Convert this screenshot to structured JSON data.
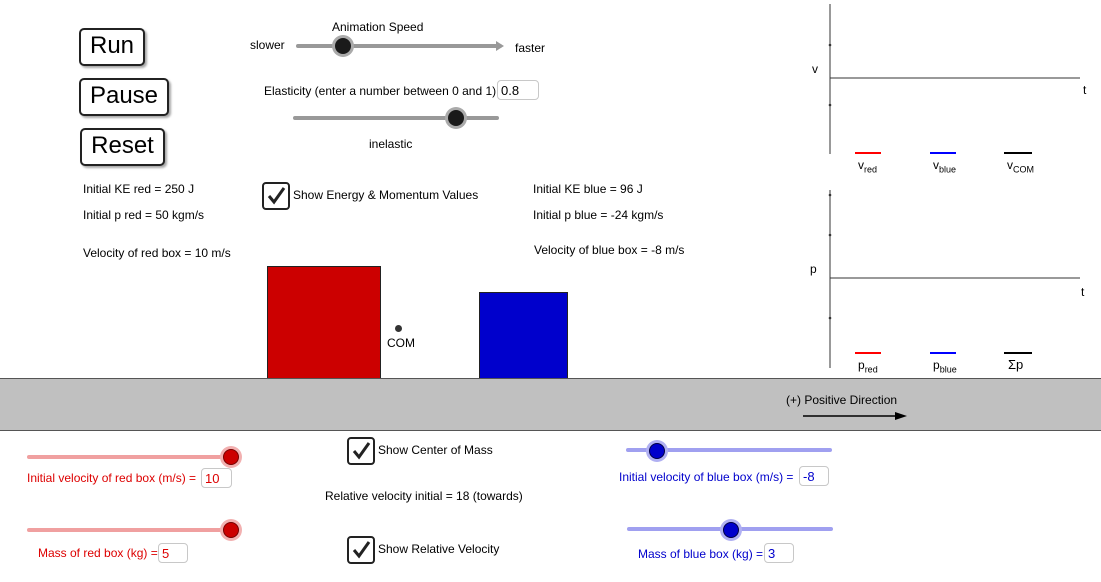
{
  "controls": {
    "run_label": "Run",
    "pause_label": "Pause",
    "reset_label": "Reset"
  },
  "animation": {
    "title": "Animation Speed",
    "slower_label": "slower",
    "faster_label": "faster",
    "speed_fraction": 0.25
  },
  "elasticity": {
    "label": "Elasticity (enter a number between 0 and 1)",
    "value": "0.8",
    "slider_fraction": 0.8,
    "state_label": "inelastic"
  },
  "show_energy": {
    "label": "Show Energy & Momentum Values",
    "checked": true
  },
  "red_info": {
    "ke": "Initial KE red = 250 J",
    "p": "Initial p red = 50 kgm/s",
    "velocity": "Velocity of red box = 10 m/s"
  },
  "blue_info": {
    "ke": "Initial KE blue = 96 J",
    "p": "Initial p blue = -24 kgm/s",
    "velocity": "Velocity of blue box = -8 m/s"
  },
  "scene": {
    "com_label": "COM",
    "direction_label": "(+) Positive Direction"
  },
  "graph_v": {
    "y_label": "v",
    "x_label": "t",
    "legend": [
      {
        "main": "v",
        "sub": "red",
        "color": "#ff0000"
      },
      {
        "main": "v",
        "sub": "blue",
        "color": "#0000ff"
      },
      {
        "main": "v",
        "sub": "COM",
        "color": "#000000"
      }
    ]
  },
  "graph_p": {
    "y_label": "p",
    "x_label": "t",
    "legend": [
      {
        "main": "p",
        "sub": "red",
        "color": "#ff0000"
      },
      {
        "main": "p",
        "sub": "blue",
        "color": "#0000ff"
      },
      {
        "main": "Σp",
        "sub": "",
        "color": "#000000"
      }
    ]
  },
  "red_controls": {
    "velocity_label": "Initial velocity of red box (m/s) =",
    "velocity_value": "10",
    "velocity_fraction": 1.0,
    "mass_label": "Mass of red box (kg) =",
    "mass_value": "5",
    "mass_fraction": 1.0
  },
  "blue_controls": {
    "velocity_label": "Initial velocity of blue box (m/s) =",
    "velocity_value": "-8",
    "velocity_fraction": 0.15,
    "mass_label": "Mass of blue box (kg) =",
    "mass_value": "3",
    "mass_fraction": 0.5
  },
  "center_options": {
    "show_com_label": "Show Center of Mass",
    "show_com_checked": true,
    "relative_velocity_text": "Relative velocity initial = 18 (towards)",
    "show_relvel_label": "Show Relative Velocity",
    "show_relvel_checked": true
  },
  "colors": {
    "red_box": "#cc0000",
    "blue_box": "#0000cc",
    "ground": "#c0c0c0"
  }
}
